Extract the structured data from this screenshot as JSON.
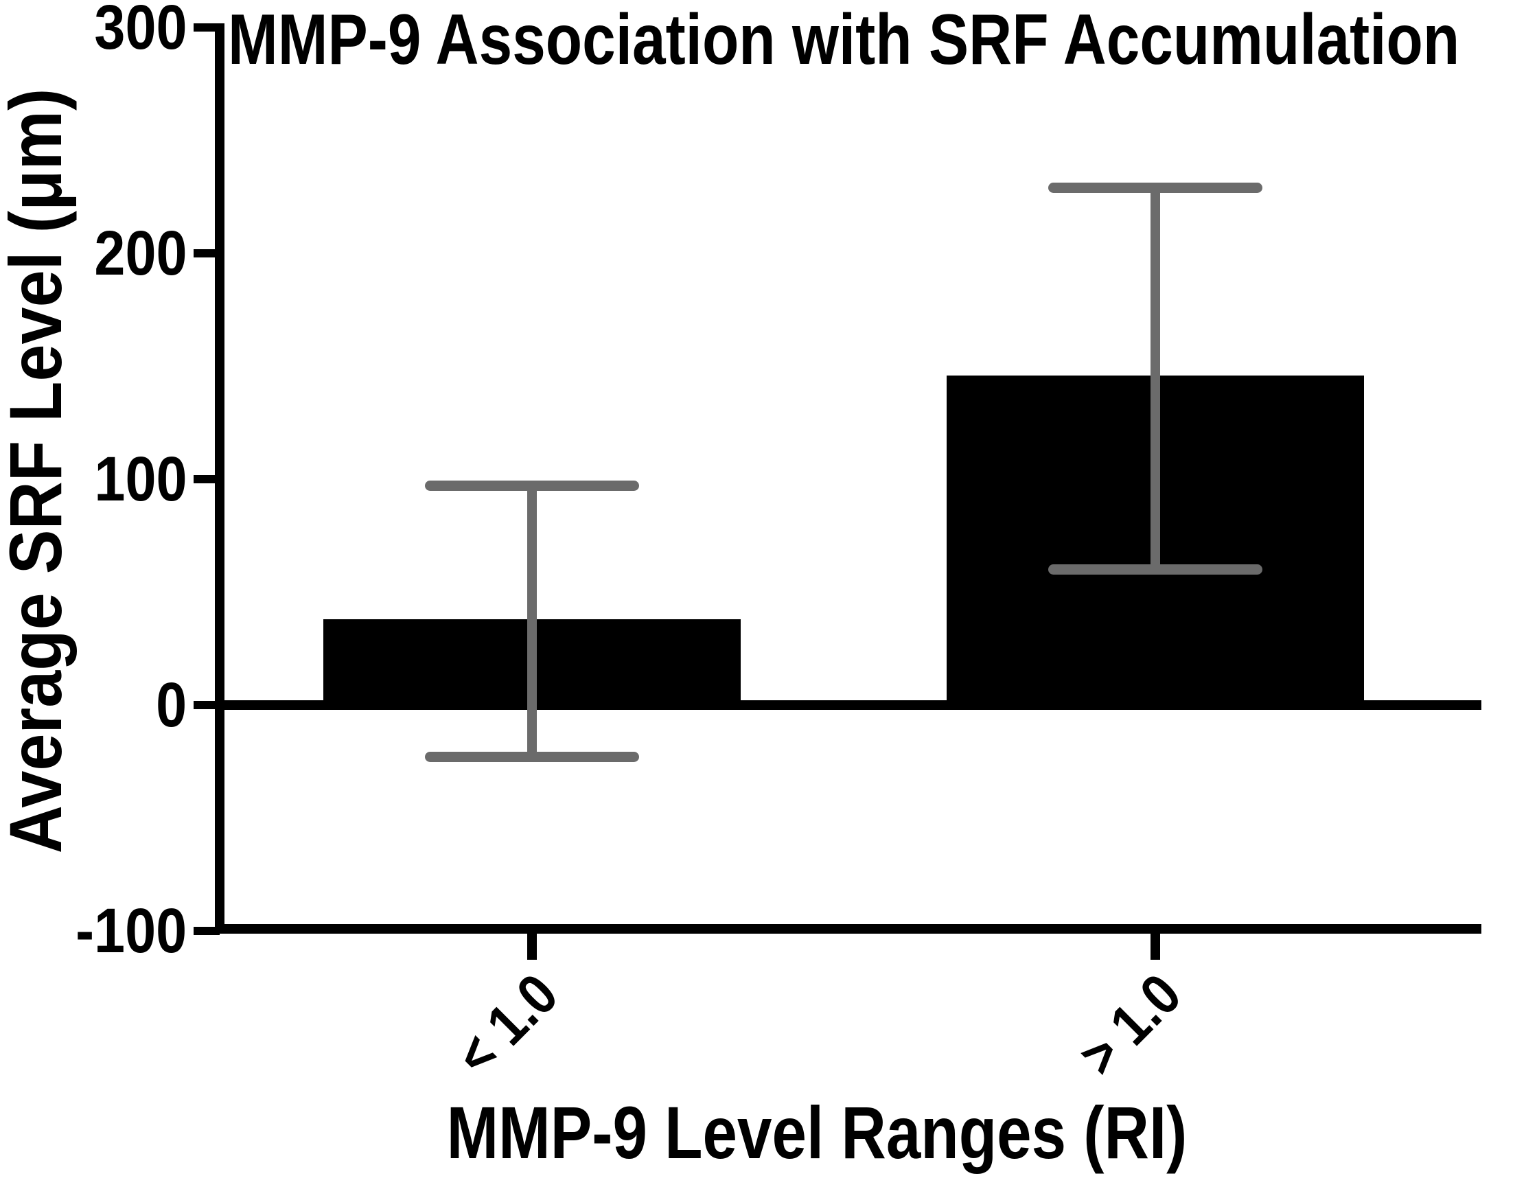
{
  "title": "MMP-9 Association with SRF Accumulation",
  "y_axis": {
    "label": "Average SRF Level (μm)",
    "ticks": [
      "300",
      "200",
      "100",
      "0",
      "-100"
    ]
  },
  "x_axis": {
    "label": "MMP-9 Level Ranges (RI)",
    "categories": [
      "< 1.0",
      "> 1.0"
    ]
  },
  "colors": {
    "bar": "#000000",
    "error_bar": "#6b6b6b",
    "axis": "#000000",
    "background": "#ffffff"
  },
  "chart_data": {
    "type": "bar",
    "title": "MMP-9 Association with SRF Accumulation",
    "xlabel": "MMP-9 Level Ranges (RI)",
    "ylabel": "Average SRF Level (μm)",
    "categories": [
      "< 1.0",
      "> 1.0"
    ],
    "values": [
      38,
      146
    ],
    "error_bars": {
      "upper": [
        97,
        229
      ],
      "lower": [
        -23,
        60
      ]
    },
    "ylim": [
      -100,
      300
    ],
    "yticks": [
      300,
      200,
      100,
      0,
      -100
    ],
    "baseline": 0,
    "grid": false,
    "legend": false,
    "bar_color": "#000000",
    "error_color": "#6b6b6b"
  }
}
